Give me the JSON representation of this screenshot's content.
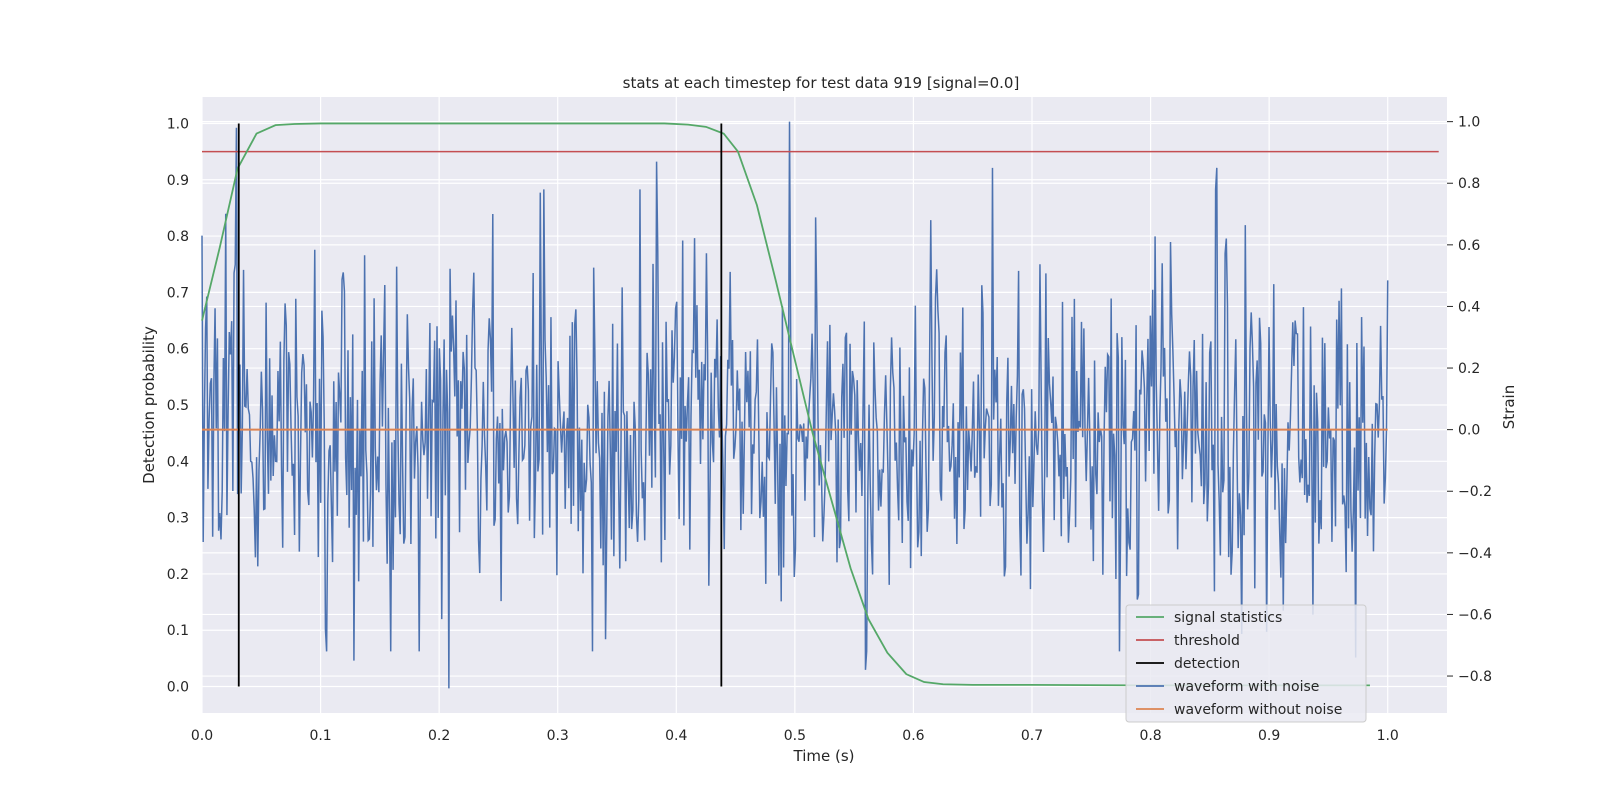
{
  "chart_data": {
    "type": "line",
    "title": "stats at each timestep for test data 919 [signal=0.0]",
    "xlabel": "Time (s)",
    "ylabel_left": "Detection probability",
    "ylabel_right": "Strain",
    "xlim": [
      0.0,
      1.05
    ],
    "ylim_left": [
      -0.047,
      1.047
    ],
    "ylim_right": [
      -0.92,
      1.08
    ],
    "x_ticks": [
      0.0,
      0.1,
      0.2,
      0.3,
      0.4,
      0.5,
      0.6,
      0.7,
      0.8,
      0.9,
      1.0
    ],
    "x_tick_labels": [
      "0.0",
      "0.1",
      "0.2",
      "0.3",
      "0.4",
      "0.5",
      "0.6",
      "0.7",
      "0.8",
      "0.9",
      "1.0"
    ],
    "y_left_ticks": [
      0.0,
      0.1,
      0.2,
      0.3,
      0.4,
      0.5,
      0.6,
      0.7,
      0.8,
      0.9,
      1.0
    ],
    "y_left_tick_labels": [
      "0.0",
      "0.1",
      "0.2",
      "0.3",
      "0.4",
      "0.5",
      "0.6",
      "0.7",
      "0.8",
      "0.9",
      "1.0"
    ],
    "y_right_ticks": [
      -0.8,
      -0.6,
      -0.4,
      -0.2,
      0.0,
      0.2,
      0.4,
      0.6,
      0.8,
      1.0
    ],
    "y_right_tick_labels": [
      "−0.8",
      "−0.6",
      "−0.4",
      "−0.2",
      "0.0",
      "0.2",
      "0.4",
      "0.6",
      "0.8",
      "1.0"
    ],
    "grid": true,
    "legend_placement": "lower-right",
    "colors": {
      "background": "#eaeaf2",
      "grid": "#ffffff",
      "signal": "#55a868",
      "threshold": "#c44e52",
      "detection": "#000000",
      "noisy": "#4c72b0",
      "clean": "#dd8452"
    },
    "series": [
      {
        "name": "signal statistics",
        "axis": "left",
        "x": [
          0.0,
          0.015,
          0.03,
          0.046,
          0.062,
          0.078,
          0.1,
          0.2,
          0.3,
          0.39,
          0.41,
          0.425,
          0.44,
          0.452,
          0.468,
          0.484,
          0.5,
          0.515,
          0.531,
          0.547,
          0.562,
          0.578,
          0.594,
          0.609,
          0.625,
          0.65,
          0.7,
          0.8,
          0.9,
          0.985
        ],
        "y": [
          0.65,
          0.78,
          0.92,
          0.982,
          0.997,
          0.999,
          1.0,
          1.0,
          1.0,
          1.0,
          0.998,
          0.994,
          0.982,
          0.95,
          0.855,
          0.72,
          0.58,
          0.45,
          0.33,
          0.21,
          0.12,
          0.06,
          0.022,
          0.008,
          0.004,
          0.003,
          0.003,
          0.002,
          0.002,
          0.002
        ]
      },
      {
        "name": "threshold",
        "axis": "left",
        "x": [
          0.0,
          1.043
        ],
        "y": [
          0.95,
          0.95
        ]
      },
      {
        "name": "detection",
        "axis": "left",
        "x": [
          0.031,
          0.438
        ],
        "y_range": [
          0.0,
          1.0
        ]
      },
      {
        "name": "waveform with noise",
        "axis": "right",
        "x_start": 0.0,
        "x_end": 1.0,
        "n_points": 1000,
        "y_peaks": [
          {
            "x": 0.029,
            "y": 0.98
          },
          {
            "x": 0.208,
            "y": -0.84
          },
          {
            "x": 0.383,
            "y": 0.87
          },
          {
            "x": 0.495,
            "y": 1.0
          },
          {
            "x": 0.667,
            "y": 0.85
          },
          {
            "x": 0.856,
            "y": 0.85
          },
          {
            "x": 0.973,
            "y": -0.74
          },
          {
            "x": 0.245,
            "y": 0.7
          },
          {
            "x": 0.56,
            "y": -0.78
          },
          {
            "x": 0.128,
            "y": -0.75
          }
        ]
      },
      {
        "name": "waveform without noise",
        "axis": "right",
        "x": [
          0.0,
          1.0
        ],
        "y": [
          0.0,
          0.0
        ]
      }
    ]
  }
}
